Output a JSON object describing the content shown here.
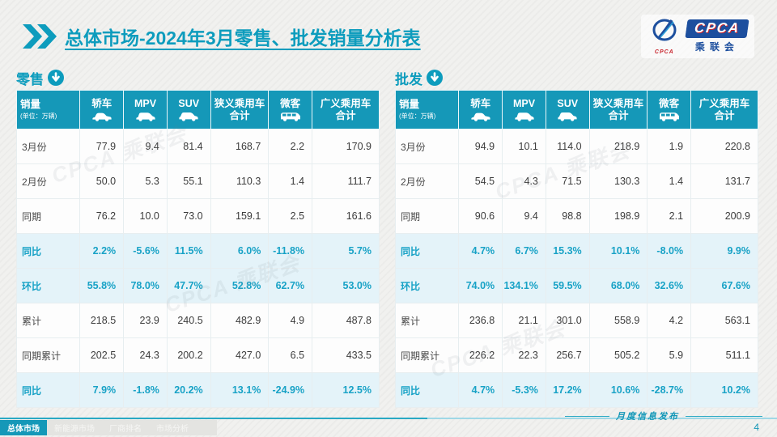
{
  "header": {
    "title_bold": "总体市场",
    "title_rest": "-2024年3月零售、批发销量分析表",
    "logo": {
      "band_text": "CPCA",
      "cn_text": "乘联会",
      "emblem_sub": "CPCA"
    }
  },
  "colors": {
    "accent_teal": "#1598b8",
    "title_teal": "#0d9cbd",
    "highlight_row_bg": "#e4f3f9",
    "highlight_text": "#18a2c6",
    "logo_blue": "#1d4f9e",
    "logo_red": "#c8242c"
  },
  "watermark_text": "CPCA 乘联会",
  "tables": {
    "retail": {
      "section_label": "零售",
      "unit_label": "(单位：万辆)",
      "sales_label": "销量",
      "columns": [
        {
          "label": "轿车",
          "icon": "sedan-icon"
        },
        {
          "label": "MPV",
          "icon": "mpv-icon"
        },
        {
          "label": "SUV",
          "icon": "suv-icon"
        },
        {
          "label": "狭义乘用车",
          "label2": "合计"
        },
        {
          "label": "微客",
          "icon": "microvan-icon"
        },
        {
          "label": "广义乘用车",
          "label2": "合计"
        }
      ],
      "rows": [
        {
          "label": "3月份",
          "highlight": false,
          "values": [
            "77.9",
            "9.4",
            "81.4",
            "168.7",
            "2.2",
            "170.9"
          ]
        },
        {
          "label": "2月份",
          "highlight": false,
          "values": [
            "50.0",
            "5.3",
            "55.1",
            "110.3",
            "1.4",
            "111.7"
          ]
        },
        {
          "label": "同期",
          "highlight": false,
          "values": [
            "76.2",
            "10.0",
            "73.0",
            "159.1",
            "2.5",
            "161.6"
          ]
        },
        {
          "label": "同比",
          "highlight": true,
          "values": [
            "2.2%",
            "-5.6%",
            "11.5%",
            "6.0%",
            "-11.8%",
            "5.7%"
          ]
        },
        {
          "label": "环比",
          "highlight": true,
          "values": [
            "55.8%",
            "78.0%",
            "47.7%",
            "52.8%",
            "62.7%",
            "53.0%"
          ]
        },
        {
          "label": "累计",
          "highlight": false,
          "values": [
            "218.5",
            "23.9",
            "240.5",
            "482.9",
            "4.9",
            "487.8"
          ]
        },
        {
          "label": "同期累计",
          "highlight": false,
          "values": [
            "202.5",
            "24.3",
            "200.2",
            "427.0",
            "6.5",
            "433.5"
          ]
        },
        {
          "label": "同比",
          "highlight": true,
          "values": [
            "7.9%",
            "-1.8%",
            "20.2%",
            "13.1%",
            "-24.9%",
            "12.5%"
          ]
        }
      ]
    },
    "wholesale": {
      "section_label": "批发",
      "unit_label": "(单位：万辆)",
      "sales_label": "销量",
      "columns": [
        {
          "label": "轿车",
          "icon": "sedan-icon"
        },
        {
          "label": "MPV",
          "icon": "mpv-icon"
        },
        {
          "label": "SUV",
          "icon": "suv-icon"
        },
        {
          "label": "狭义乘用车",
          "label2": "合计"
        },
        {
          "label": "微客",
          "icon": "microvan-icon"
        },
        {
          "label": "广义乘用车",
          "label2": "合计"
        }
      ],
      "rows": [
        {
          "label": "3月份",
          "highlight": false,
          "values": [
            "94.9",
            "10.1",
            "114.0",
            "218.9",
            "1.9",
            "220.8"
          ]
        },
        {
          "label": "2月份",
          "highlight": false,
          "values": [
            "54.5",
            "4.3",
            "71.5",
            "130.3",
            "1.4",
            "131.7"
          ]
        },
        {
          "label": "同期",
          "highlight": false,
          "values": [
            "90.6",
            "9.4",
            "98.8",
            "198.9",
            "2.1",
            "200.9"
          ]
        },
        {
          "label": "同比",
          "highlight": true,
          "values": [
            "4.7%",
            "6.7%",
            "15.3%",
            "10.1%",
            "-8.0%",
            "9.9%"
          ]
        },
        {
          "label": "环比",
          "highlight": true,
          "values": [
            "74.0%",
            "134.1%",
            "59.5%",
            "68.0%",
            "32.6%",
            "67.6%"
          ]
        },
        {
          "label": "累计",
          "highlight": false,
          "values": [
            "236.8",
            "21.1",
            "301.0",
            "558.9",
            "4.2",
            "563.1"
          ]
        },
        {
          "label": "同期累计",
          "highlight": false,
          "values": [
            "226.2",
            "22.3",
            "256.7",
            "505.2",
            "5.9",
            "511.1"
          ]
        },
        {
          "label": "同比",
          "highlight": true,
          "values": [
            "4.7%",
            "-5.3%",
            "17.2%",
            "10.6%",
            "-28.7%",
            "10.2%"
          ]
        }
      ]
    }
  },
  "footer": {
    "tabs": [
      {
        "label": "总体市场",
        "active": true
      },
      {
        "label": "新能源市场",
        "active": false
      },
      {
        "label": "厂商排名",
        "active": false
      },
      {
        "label": "市场分析",
        "active": false
      }
    ],
    "note": "月度信息发布",
    "page_number": "4"
  }
}
